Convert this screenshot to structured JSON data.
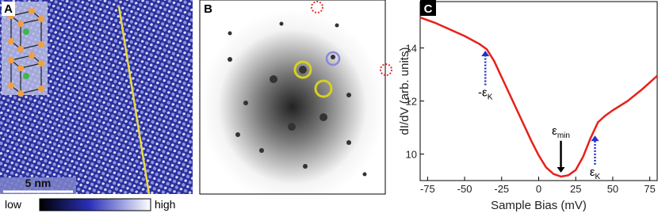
{
  "panel_labels": [
    "A",
    "B",
    "C"
  ],
  "scale_bar": "5 nm",
  "colorbar": {
    "low": "low",
    "high": "high"
  },
  "chart_data": {
    "type": "line",
    "xlabel": "Sample Bias (mV)",
    "ylabel": "dI/dV (arb. units)",
    "x": [
      -80,
      -70,
      -60,
      -50,
      -40,
      -35,
      -30,
      -25,
      -20,
      -15,
      -10,
      -5,
      0,
      5,
      10,
      15,
      20,
      25,
      30,
      35,
      40,
      45,
      50,
      60,
      70,
      80
    ],
    "series": [
      {
        "color": "#e8201a",
        "values": [
          15.15,
          14.95,
          14.7,
          14.45,
          14.15,
          13.95,
          13.5,
          12.9,
          12.3,
          11.7,
          11.1,
          10.5,
          9.95,
          9.5,
          9.25,
          9.15,
          9.2,
          9.4,
          9.9,
          10.6,
          11.2,
          11.45,
          11.65,
          12.0,
          12.45,
          12.95
        ]
      }
    ],
    "xlim": [
      -80,
      80
    ],
    "xticks": [
      -75,
      -50,
      -25,
      0,
      25,
      50,
      75
    ],
    "ylim": [
      9.0,
      15.75
    ],
    "yticks": [
      10,
      12,
      14
    ],
    "annotations": [
      {
        "text": "-ε",
        "sub": "K",
        "x": -36,
        "y_from": 12.6,
        "y_to": 13.9,
        "color": "#2233cc",
        "dotted": true
      },
      {
        "text": "ε",
        "sub": "min",
        "x": 15,
        "y_from": 10.5,
        "y_to": 9.3,
        "color": "#000000",
        "dotted": false
      },
      {
        "text": "ε",
        "sub": "K",
        "x": 38,
        "y_from": 9.6,
        "y_to": 10.7,
        "color": "#2233cc",
        "dotted": true
      }
    ]
  }
}
